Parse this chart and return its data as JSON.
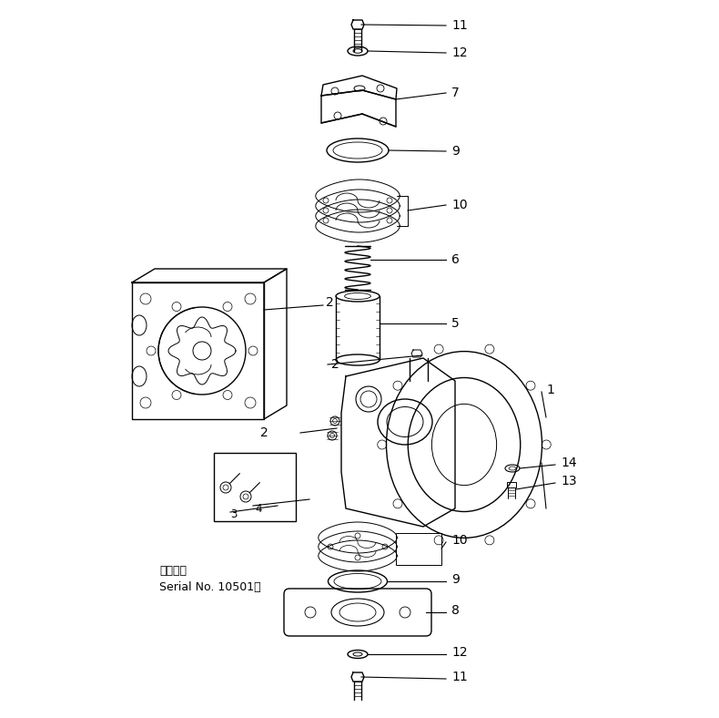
{
  "bg_color": "#ffffff",
  "line_color": "#000000",
  "fig_width": 7.9,
  "fig_height": 7.88,
  "dpi": 100,
  "serial_text_line1": "適用号標",
  "serial_text_line2": "Serial No. 10501～"
}
